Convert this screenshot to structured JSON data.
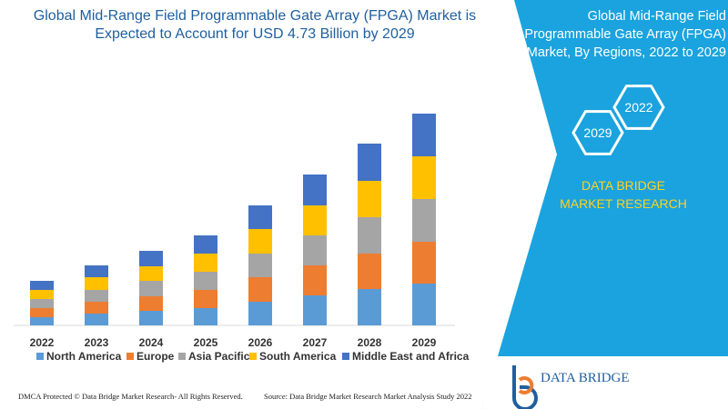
{
  "chart_data": {
    "type": "bar",
    "stacked": true,
    "title": "Global Mid-Range Field Programmable Gate Array (FPGA) Market is Expected to Account for USD 4.73 Billion by 2029",
    "categories": [
      "2022",
      "2023",
      "2024",
      "2025",
      "2026",
      "2027",
      "2028",
      "2029"
    ],
    "series": [
      {
        "name": "North America",
        "color": "#5b9bd5",
        "values": [
          9,
          13,
          16,
          19,
          26,
          33,
          40,
          46
        ]
      },
      {
        "name": "Europe",
        "color": "#ed7d31",
        "values": [
          10,
          13,
          16,
          20,
          27,
          33,
          39,
          46
        ]
      },
      {
        "name": "Asia Pacific",
        "color": "#a5a5a5",
        "values": [
          10,
          13,
          17,
          20,
          26,
          33,
          40,
          47
        ]
      },
      {
        "name": "South America",
        "color": "#ffc000",
        "values": [
          10,
          14,
          16,
          20,
          27,
          33,
          40,
          47
        ]
      },
      {
        "name": "Middle East and Africa",
        "color": "#4472c4",
        "values": [
          10,
          13,
          17,
          20,
          26,
          34,
          41,
          47
        ]
      }
    ]
  },
  "panel": {
    "title": "Global Mid-Range Field Programmable Gate Array (FPGA) Market, By Regions, 2022 to 2029",
    "hexagons": [
      "2029",
      "2022"
    ],
    "brand": "DATA BRIDGE MARKET RESEARCH"
  },
  "logo": {
    "text": "DATA BRIDGE"
  },
  "footer": {
    "left": "DMCA Protected © Data Bridge Market Research- All Rights Reserved.",
    "right": "Source: Data Bridge Market Research Market Analysis Study 2022"
  }
}
